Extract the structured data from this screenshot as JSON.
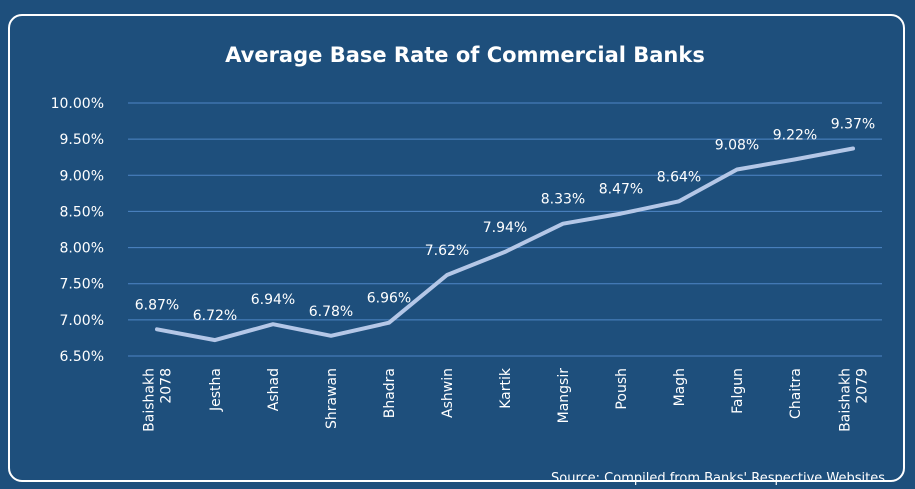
{
  "chart_data": {
    "type": "line",
    "title": "Average Base Rate of Commercial Banks",
    "xlabel": "",
    "ylabel": "",
    "categories": [
      [
        "Baishakh",
        "2078"
      ],
      [
        "Jestha"
      ],
      [
        "Ashad"
      ],
      [
        "Shrawan"
      ],
      [
        "Bhadra"
      ],
      [
        "Ashwin"
      ],
      [
        "Kartik"
      ],
      [
        "Mangsir"
      ],
      [
        "Poush"
      ],
      [
        "Magh"
      ],
      [
        "Falgun"
      ],
      [
        "Chaitra"
      ],
      [
        "Baishakh",
        "2079"
      ]
    ],
    "values": [
      6.87,
      6.72,
      6.94,
      6.78,
      6.96,
      7.62,
      7.94,
      8.33,
      8.47,
      8.64,
      9.08,
      9.22,
      9.37
    ],
    "data_labels": [
      "6.87%",
      "6.72%",
      "6.94%",
      "6.78%",
      "6.96%",
      "7.62%",
      "7.94%",
      "8.33%",
      "8.47%",
      "8.64%",
      "9.08%",
      "9.22%",
      "9.37%"
    ],
    "ylim": [
      6.5,
      10.0
    ],
    "yticks": [
      6.5,
      7.0,
      7.5,
      8.0,
      8.5,
      9.0,
      9.5,
      10.0
    ],
    "ytick_labels": [
      "6.50%",
      "7.00%",
      "7.50%",
      "8.00%",
      "8.50%",
      "9.00%",
      "9.50%",
      "10.00%"
    ],
    "grid": true,
    "legend": "none",
    "source": "Source: Compiled from Banks' Respective Websites",
    "colors": {
      "background": "#1e4f7c",
      "line": "#b4c7e7",
      "grid": "#4f86c6",
      "text": "#ffffff"
    }
  }
}
